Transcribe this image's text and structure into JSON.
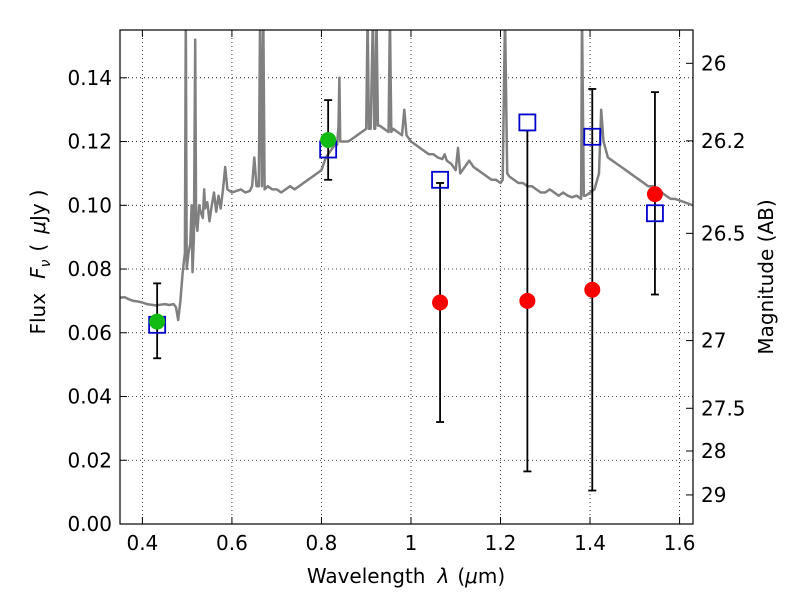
{
  "chart_data": {
    "type": "scatter",
    "xlabel_prefix": "Wavelength",
    "xlabel_symbol": "λ",
    "xlabel_unit_open": "(",
    "xlabel_unit_mu": "μ",
    "xlabel_unit_rest": "m)",
    "ylabel_prefix": "Flux",
    "ylabel_symbol": "F",
    "ylabel_subscript": "ν",
    "ylabel_unit_open": "(",
    "ylabel_unit_mu": "μ",
    "ylabel_unit_rest": "Jy",
    "ylabel_unit_close": ")",
    "y2label": "Magnitude (AB)",
    "xlim": [
      0.35,
      1.63
    ],
    "ylim": [
      0.0,
      0.155
    ],
    "grid": true,
    "x_ticks": [
      {
        "value": 0.4,
        "label": "0.4"
      },
      {
        "value": 0.6,
        "label": "0.6"
      },
      {
        "value": 0.8,
        "label": "0.8"
      },
      {
        "value": 1.0,
        "label": "1"
      },
      {
        "value": 1.2,
        "label": "1.2"
      },
      {
        "value": 1.4,
        "label": "1.4"
      },
      {
        "value": 1.6,
        "label": "1.6"
      }
    ],
    "y_ticks": [
      {
        "value": 0.0,
        "label": "0.00"
      },
      {
        "value": 0.02,
        "label": "0.02"
      },
      {
        "value": 0.04,
        "label": "0.04"
      },
      {
        "value": 0.06,
        "label": "0.06"
      },
      {
        "value": 0.08,
        "label": "0.08"
      },
      {
        "value": 0.1,
        "label": "0.10"
      },
      {
        "value": 0.12,
        "label": "0.12"
      },
      {
        "value": 0.14,
        "label": "0.14"
      }
    ],
    "y2_ticks": [
      {
        "value": 26,
        "label": "26"
      },
      {
        "value": 26.2,
        "label": "26.2"
      },
      {
        "value": 26.5,
        "label": "26.5"
      },
      {
        "value": 27,
        "label": "27"
      },
      {
        "value": 27.5,
        "label": "27.5"
      },
      {
        "value": 28,
        "label": "28"
      },
      {
        "value": 29,
        "label": "29"
      }
    ],
    "series": [
      {
        "kind": "line",
        "color": "#808080",
        "points": [
          [
            0.35,
            0.071
          ],
          [
            0.36,
            0.0712
          ],
          [
            0.37,
            0.0705
          ],
          [
            0.38,
            0.07
          ],
          [
            0.39,
            0.0698
          ],
          [
            0.4,
            0.0695
          ],
          [
            0.41,
            0.069
          ],
          [
            0.42,
            0.0688
          ],
          [
            0.43,
            0.0686
          ],
          [
            0.44,
            0.0688
          ],
          [
            0.45,
            0.069
          ],
          [
            0.46,
            0.0687
          ],
          [
            0.47,
            0.069
          ],
          [
            0.475,
            0.068
          ],
          [
            0.48,
            0.064
          ],
          [
            0.485,
            0.07
          ],
          [
            0.49,
            0.079
          ],
          [
            0.495,
            0.085
          ],
          [
            0.497,
            0.16
          ],
          [
            0.499,
            0.08
          ],
          [
            0.503,
            0.085
          ],
          [
            0.507,
            0.088
          ],
          [
            0.51,
            0.1
          ],
          [
            0.512,
            0.079
          ],
          [
            0.515,
            0.09
          ],
          [
            0.518,
            0.152
          ],
          [
            0.52,
            0.095
          ],
          [
            0.523,
            0.092
          ],
          [
            0.527,
            0.1
          ],
          [
            0.53,
            0.098
          ],
          [
            0.535,
            0.096
          ],
          [
            0.538,
            0.105
          ],
          [
            0.54,
            0.099
          ],
          [
            0.545,
            0.101
          ],
          [
            0.55,
            0.095
          ],
          [
            0.555,
            0.1
          ],
          [
            0.56,
            0.104
          ],
          [
            0.565,
            0.098
          ],
          [
            0.57,
            0.103
          ],
          [
            0.575,
            0.099
          ],
          [
            0.58,
            0.105
          ],
          [
            0.585,
            0.112
          ],
          [
            0.59,
            0.105
          ],
          [
            0.6,
            0.104
          ],
          [
            0.61,
            0.1045
          ],
          [
            0.62,
            0.105
          ],
          [
            0.63,
            0.104
          ],
          [
            0.64,
            0.1045
          ],
          [
            0.645,
            0.106
          ],
          [
            0.65,
            0.115
          ],
          [
            0.655,
            0.106
          ],
          [
            0.66,
            0.106
          ],
          [
            0.663,
            0.16
          ],
          [
            0.667,
            0.106
          ],
          [
            0.67,
            0.16
          ],
          [
            0.673,
            0.105
          ],
          [
            0.68,
            0.106
          ],
          [
            0.69,
            0.105
          ],
          [
            0.7,
            0.105
          ],
          [
            0.71,
            0.104
          ],
          [
            0.72,
            0.105
          ],
          [
            0.73,
            0.106
          ],
          [
            0.74,
            0.105
          ],
          [
            0.75,
            0.106
          ],
          [
            0.76,
            0.107
          ],
          [
            0.77,
            0.108
          ],
          [
            0.78,
            0.109
          ],
          [
            0.79,
            0.11
          ],
          [
            0.8,
            0.111
          ],
          [
            0.81,
            0.115
          ],
          [
            0.815,
            0.116
          ],
          [
            0.82,
            0.117
          ],
          [
            0.825,
            0.118
          ],
          [
            0.83,
            0.119
          ],
          [
            0.835,
            0.119
          ],
          [
            0.838,
            0.125
          ],
          [
            0.84,
            0.14
          ],
          [
            0.842,
            0.12
          ],
          [
            0.85,
            0.12
          ],
          [
            0.86,
            0.12
          ],
          [
            0.87,
            0.121
          ],
          [
            0.88,
            0.122
          ],
          [
            0.89,
            0.123
          ],
          [
            0.9,
            0.124
          ],
          [
            0.903,
            0.16
          ],
          [
            0.906,
            0.124
          ],
          [
            0.91,
            0.124
          ],
          [
            0.915,
            0.16
          ],
          [
            0.918,
            0.124
          ],
          [
            0.92,
            0.124
          ],
          [
            0.923,
            0.16
          ],
          [
            0.926,
            0.125
          ],
          [
            0.93,
            0.125
          ],
          [
            0.94,
            0.124
          ],
          [
            0.95,
            0.123
          ],
          [
            0.953,
            0.16
          ],
          [
            0.956,
            0.123
          ],
          [
            0.96,
            0.124
          ],
          [
            0.97,
            0.123
          ],
          [
            0.98,
            0.122
          ],
          [
            0.985,
            0.13
          ],
          [
            0.99,
            0.122
          ],
          [
            1.0,
            0.12
          ],
          [
            1.01,
            0.119
          ],
          [
            1.02,
            0.118
          ],
          [
            1.03,
            0.117
          ],
          [
            1.04,
            0.116
          ],
          [
            1.05,
            0.116
          ],
          [
            1.06,
            0.115
          ],
          [
            1.07,
            0.1145
          ],
          [
            1.075,
            0.116
          ],
          [
            1.08,
            0.114
          ],
          [
            1.09,
            0.113
          ],
          [
            1.1,
            0.111
          ],
          [
            1.105,
            0.118
          ],
          [
            1.11,
            0.11
          ],
          [
            1.12,
            0.112
          ],
          [
            1.13,
            0.114
          ],
          [
            1.14,
            0.112
          ],
          [
            1.15,
            0.111
          ],
          [
            1.16,
            0.11
          ],
          [
            1.17,
            0.109
          ],
          [
            1.18,
            0.108
          ],
          [
            1.19,
            0.108
          ],
          [
            1.2,
            0.107
          ],
          [
            1.205,
            0.108
          ],
          [
            1.21,
            0.16
          ],
          [
            1.215,
            0.11
          ],
          [
            1.22,
            0.109
          ],
          [
            1.23,
            0.108
          ],
          [
            1.24,
            0.107
          ],
          [
            1.25,
            0.107
          ],
          [
            1.26,
            0.106
          ],
          [
            1.27,
            0.106
          ],
          [
            1.28,
            0.105
          ],
          [
            1.29,
            0.104
          ],
          [
            1.3,
            0.104
          ],
          [
            1.31,
            0.105
          ],
          [
            1.32,
            0.104
          ],
          [
            1.33,
            0.103
          ],
          [
            1.34,
            0.104
          ],
          [
            1.35,
            0.103
          ],
          [
            1.36,
            0.1025
          ],
          [
            1.37,
            0.103
          ],
          [
            1.38,
            0.102
          ],
          [
            1.382,
            0.16
          ],
          [
            1.386,
            0.103
          ],
          [
            1.39,
            0.103
          ],
          [
            1.4,
            0.104
          ],
          [
            1.41,
            0.105
          ],
          [
            1.42,
            0.11
          ],
          [
            1.425,
            0.13
          ],
          [
            1.43,
            0.12
          ],
          [
            1.44,
            0.115
          ],
          [
            1.45,
            0.114
          ],
          [
            1.46,
            0.113
          ],
          [
            1.47,
            0.112
          ],
          [
            1.48,
            0.111
          ],
          [
            1.49,
            0.11
          ],
          [
            1.5,
            0.109
          ],
          [
            1.51,
            0.108
          ],
          [
            1.52,
            0.107
          ],
          [
            1.53,
            0.106
          ],
          [
            1.54,
            0.106
          ],
          [
            1.55,
            0.105
          ],
          [
            1.56,
            0.104
          ],
          [
            1.57,
            0.103
          ],
          [
            1.58,
            0.102
          ],
          [
            1.59,
            0.102
          ],
          [
            1.6,
            0.1015
          ],
          [
            1.61,
            0.101
          ],
          [
            1.62,
            0.1005
          ],
          [
            1.63,
            0.1
          ]
        ]
      },
      {
        "kind": "markers",
        "marker": "square-open",
        "color": "#0000cc",
        "points": [
          [
            0.433,
            0.0625
          ],
          [
            0.815,
            0.1175
          ],
          [
            1.065,
            0.108
          ],
          [
            1.26,
            0.126
          ],
          [
            1.405,
            0.1215
          ],
          [
            1.545,
            0.0975
          ]
        ]
      },
      {
        "kind": "markers",
        "marker": "circle",
        "color": "#ff0000",
        "points": [
          [
            1.065,
            0.0695
          ],
          [
            1.26,
            0.07
          ],
          [
            1.405,
            0.0735
          ],
          [
            1.545,
            0.1035
          ]
        ]
      },
      {
        "kind": "markers",
        "marker": "circle",
        "color": "#11bb11",
        "points": [
          [
            0.433,
            0.0635
          ],
          [
            0.815,
            0.1205
          ]
        ]
      },
      {
        "kind": "errorbars",
        "color": "#000000",
        "bars": [
          {
            "x": 0.433,
            "low": 0.052,
            "high": 0.0755
          },
          {
            "x": 0.815,
            "low": 0.108,
            "high": 0.133
          },
          {
            "x": 1.065,
            "low": 0.032,
            "high": 0.107
          },
          {
            "x": 1.26,
            "low": 0.0165,
            "high": 0.1235
          },
          {
            "x": 1.405,
            "low": 0.0105,
            "high": 0.1365
          },
          {
            "x": 1.545,
            "low": 0.072,
            "high": 0.1355
          }
        ]
      }
    ]
  }
}
